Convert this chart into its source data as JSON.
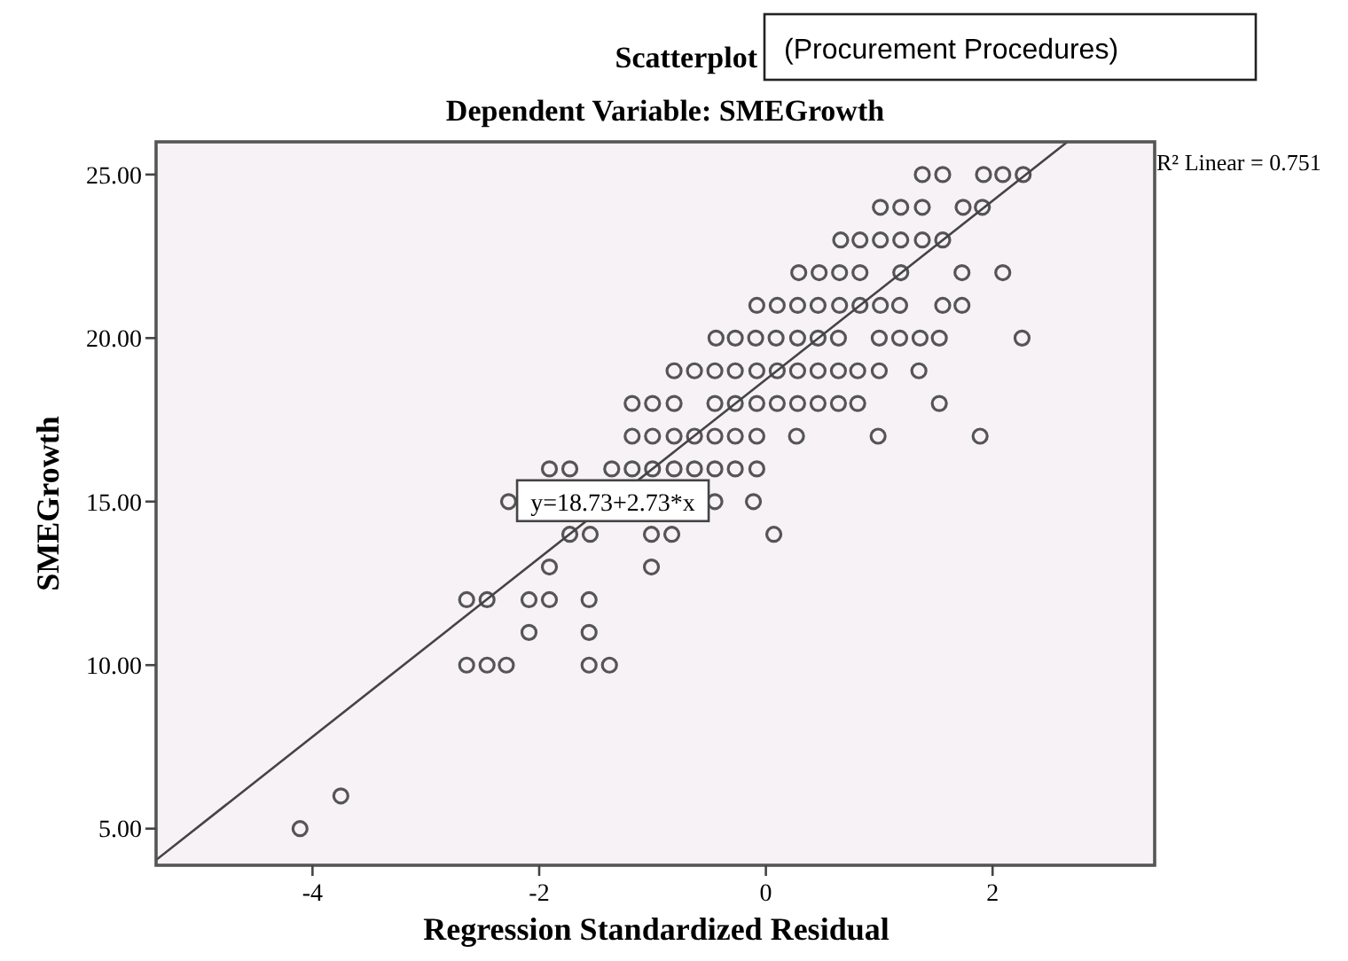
{
  "chart_data": {
    "type": "scatter",
    "title": "Scatterplot",
    "subtitle": "Dependent Variable: SMEGrowth",
    "xlabel": "Regression Standardized Residual",
    "ylabel": "SMEGrowth",
    "annotations": [
      "(Procurement Procedures)",
      "R² Linear = 0.751",
      {
        "text": "y=18.73+2.73*x",
        "x": -1.35,
        "y": 15
      }
    ],
    "xlim": [
      -5.38,
      3.43
    ],
    "ylim": [
      3.88,
      26
    ],
    "xticks": [
      -4,
      -2,
      0,
      2
    ],
    "yticks": [
      {
        "value": 5,
        "label": "5.00"
      },
      {
        "value": 10,
        "label": "10.00"
      },
      {
        "value": 15,
        "label": "15.00"
      },
      {
        "value": 20,
        "label": "20.00"
      },
      {
        "value": 25,
        "label": "25.00"
      }
    ],
    "grid": false,
    "marker": "circle",
    "series": [
      {
        "color": "#555555",
        "x": [
          1.38,
          1.56,
          1.92,
          2.09,
          2.27,
          1.01,
          1.19,
          1.38,
          1.74,
          1.91,
          0.66,
          0.83,
          1.01,
          1.19,
          1.38,
          1.56,
          0.29,
          0.47,
          0.65,
          0.83,
          1.19,
          1.73,
          2.09,
          -0.08,
          0.1,
          0.28,
          0.46,
          0.65,
          0.83,
          1.01,
          1.18,
          1.56,
          1.73,
          -0.44,
          -0.27,
          -0.09,
          0.09,
          0.28,
          0.46,
          0.64,
          1.0,
          1.18,
          1.36,
          1.53,
          2.26,
          -0.81,
          -0.63,
          -0.45,
          -0.27,
          -0.08,
          0.1,
          0.28,
          0.46,
          0.64,
          0.81,
          1.0,
          1.35,
          -1.18,
          -1.0,
          -0.81,
          -0.45,
          -0.27,
          -0.08,
          0.1,
          0.28,
          0.46,
          0.64,
          0.81,
          1.53,
          -1.18,
          -1.0,
          -0.81,
          -0.63,
          -0.45,
          -0.27,
          -0.08,
          0.27,
          0.99,
          1.89,
          -1.91,
          -1.73,
          -1.36,
          -1.18,
          -1.0,
          -0.81,
          -0.63,
          -0.45,
          -0.27,
          -0.08,
          -2.27,
          -0.45,
          -0.11,
          -1.73,
          -1.55,
          -1.01,
          -0.83,
          0.07,
          -1.91,
          -1.01,
          -2.64,
          -2.46,
          -2.09,
          -1.91,
          -1.56,
          -2.09,
          -1.56,
          -2.64,
          -2.46,
          -2.29,
          -1.56,
          -1.38,
          -3.75,
          -4.11
        ],
        "values": [
          25,
          25,
          25,
          25,
          25,
          24,
          24,
          24,
          24,
          24,
          23,
          23,
          23,
          23,
          23,
          23,
          22,
          22,
          22,
          22,
          22,
          22,
          22,
          21,
          21,
          21,
          21,
          21,
          21,
          21,
          21,
          21,
          21,
          20,
          20,
          20,
          20,
          20,
          20,
          20,
          20,
          20,
          20,
          20,
          20,
          19,
          19,
          19,
          19,
          19,
          19,
          19,
          19,
          19,
          19,
          19,
          19,
          18,
          18,
          18,
          18,
          18,
          18,
          18,
          18,
          18,
          18,
          18,
          18,
          17,
          17,
          17,
          17,
          17,
          17,
          17,
          17,
          17,
          17,
          16,
          16,
          16,
          16,
          16,
          16,
          16,
          16,
          16,
          16,
          15,
          15,
          15,
          14,
          14,
          14,
          14,
          14,
          13,
          13,
          12,
          12,
          12,
          12,
          12,
          11,
          11,
          10,
          10,
          10,
          10,
          10,
          6,
          5
        ]
      },
      {
        "type": "line",
        "color": "#444444",
        "marker": "none",
        "line_style": "solid",
        "x": [
          -5.38,
          2.66
        ],
        "values": [
          4.04,
          26
        ]
      }
    ]
  }
}
